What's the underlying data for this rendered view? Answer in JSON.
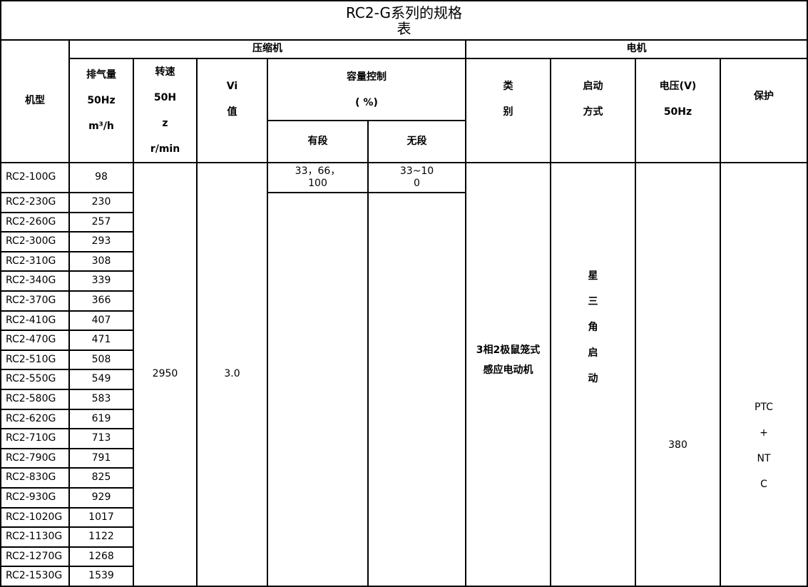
{
  "title": "RC2-G系列的规格\n表",
  "headers": {
    "model": "机型",
    "compressor": "压缩机",
    "motor": "电机",
    "displacement": "排气量\n50Hz\nm³/h",
    "speed": "转速\n50H\nz\nr/min",
    "vi": "Vi\n值",
    "capacity": "容量控制\n( %)",
    "stepped": "有段",
    "stepless": "无段",
    "type": "类\n别",
    "start": "启动\n方式",
    "voltage": "电压(V)\n50Hz",
    "protection": "保护"
  },
  "merged": {
    "speed": "2950",
    "vi": "3.0",
    "stepped_first": "33，66，\n100",
    "stepless_first": "33~10\n0",
    "motor_type": "3相2极鼠笼式\n感应电动机",
    "start_method": "星\n三\n角\n启\n动",
    "voltage": "380",
    "protection": "PTC\n+\nNT\nC"
  },
  "rows": [
    {
      "model": "RC2-100G",
      "displacement": "98"
    },
    {
      "model": "RC2-230G",
      "displacement": "230"
    },
    {
      "model": "RC2-260G",
      "displacement": "257"
    },
    {
      "model": "RC2-300G",
      "displacement": "293"
    },
    {
      "model": "RC2-310G",
      "displacement": "308"
    },
    {
      "model": "RC2-340G",
      "displacement": "339"
    },
    {
      "model": "RC2-370G",
      "displacement": "366"
    },
    {
      "model": "RC2-410G",
      "displacement": "407"
    },
    {
      "model": "RC2-470G",
      "displacement": "471"
    },
    {
      "model": "RC2-510G",
      "displacement": "508"
    },
    {
      "model": "RC2-550G",
      "displacement": "549"
    },
    {
      "model": "RC2-580G",
      "displacement": "583"
    },
    {
      "model": "RC2-620G",
      "displacement": "619"
    },
    {
      "model": "RC2-710G",
      "displacement": "713"
    },
    {
      "model": "RC2-790G",
      "displacement": "791"
    },
    {
      "model": "RC2-830G",
      "displacement": "825"
    },
    {
      "model": "RC2-930G",
      "displacement": "929"
    },
    {
      "model": "RC2-1020G",
      "displacement": "1017"
    },
    {
      "model": "RC2-1130G",
      "displacement": "1122"
    },
    {
      "model": "RC2-1270G",
      "displacement": "1268"
    },
    {
      "model": "RC2-1530G",
      "displacement": "1539"
    }
  ]
}
